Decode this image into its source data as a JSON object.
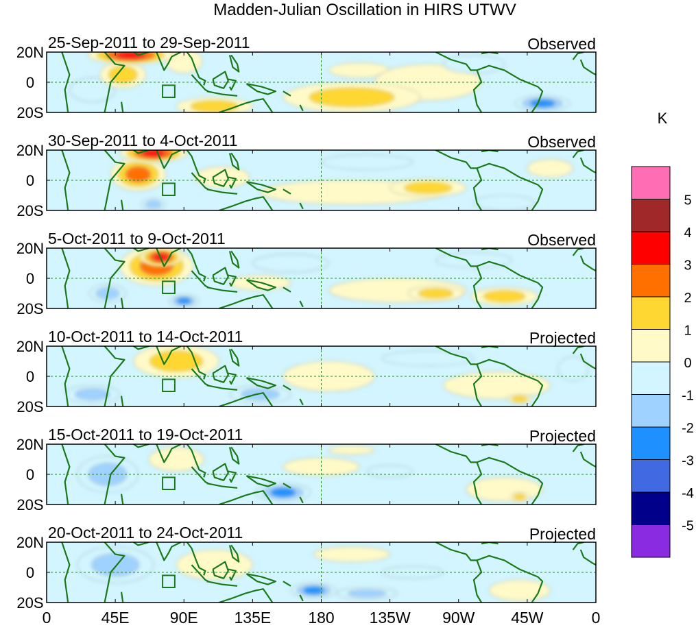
{
  "chart_data": {
    "type": "heatmap",
    "title": "Madden-Julian Oscillation in HIRS UTWV",
    "x_tick_labels": [
      "0",
      "45E",
      "90E",
      "135E",
      "180",
      "135W",
      "90W",
      "45W",
      "0"
    ],
    "x_tick_lons": [
      0,
      45,
      90,
      135,
      180,
      225,
      270,
      315,
      360
    ],
    "y_tick_labels": [
      "20N",
      "0",
      "20S"
    ],
    "y_tick_lats": [
      20,
      0,
      -20
    ],
    "xlim": [
      0,
      360
    ],
    "ylim": [
      -20,
      20
    ],
    "colorbar": {
      "unit": "K",
      "levels": [
        5,
        4,
        3,
        2,
        1,
        0,
        -1,
        -2,
        -3,
        -4,
        -5
      ],
      "colors": [
        "#ff6eb4",
        "#a02828",
        "#ff0000",
        "#ff7000",
        "#ffd732",
        "#fffac8",
        "#d2f5ff",
        "#a0d2ff",
        "#1e90ff",
        "#4169e1",
        "#00008b",
        "#8a2be2"
      ]
    },
    "reference_box": {
      "lon_min": 76,
      "lon_max": 84,
      "lat_min": -10,
      "lat_max": -2
    },
    "panels": [
      {
        "period": "25-Sep-2011 to 29-Sep-2011",
        "status": "Observed",
        "anomalies": [
          {
            "lon": 55,
            "lat": 18,
            "rx": 28,
            "ry": 6,
            "v": 4
          },
          {
            "lon": 50,
            "lat": 5,
            "rx": 15,
            "ry": 9,
            "v": 2
          },
          {
            "lon": 90,
            "lat": 14,
            "rx": 12,
            "ry": 8,
            "v": 1
          },
          {
            "lon": 110,
            "lat": -16,
            "rx": 25,
            "ry": 6,
            "v": 2
          },
          {
            "lon": 200,
            "lat": -10,
            "rx": 45,
            "ry": 10,
            "v": 2
          },
          {
            "lon": 205,
            "lat": 8,
            "rx": 20,
            "ry": 5,
            "v": 1
          },
          {
            "lon": 250,
            "lat": 0,
            "rx": 35,
            "ry": 12,
            "v": 1
          },
          {
            "lon": 325,
            "lat": -14,
            "rx": 18,
            "ry": 5,
            "v": -3
          },
          {
            "lon": 280,
            "lat": 12,
            "rx": 20,
            "ry": 6,
            "v": -1
          },
          {
            "lon": 30,
            "lat": -5,
            "rx": 15,
            "ry": 8,
            "v": -1
          }
        ]
      },
      {
        "period": "30-Sep-2011 to 4-Oct-2011",
        "status": "Observed",
        "anomalies": [
          {
            "lon": 70,
            "lat": 18,
            "rx": 22,
            "ry": 6,
            "v": 4
          },
          {
            "lon": 60,
            "lat": 4,
            "rx": 18,
            "ry": 11,
            "v": 3
          },
          {
            "lon": 115,
            "lat": 2,
            "rx": 18,
            "ry": 7,
            "v": 1
          },
          {
            "lon": 200,
            "lat": -8,
            "rx": 60,
            "ry": 8,
            "v": 1
          },
          {
            "lon": 250,
            "lat": -5,
            "rx": 25,
            "ry": 6,
            "v": 2
          },
          {
            "lon": 330,
            "lat": 8,
            "rx": 15,
            "ry": 6,
            "v": 1
          },
          {
            "lon": 70,
            "lat": -16,
            "rx": 8,
            "ry": 4,
            "v": -2
          },
          {
            "lon": 210,
            "lat": 12,
            "rx": 30,
            "ry": 5,
            "v": -1
          },
          {
            "lon": 300,
            "lat": -15,
            "rx": 20,
            "ry": 5,
            "v": -1
          }
        ]
      },
      {
        "period": "5-Oct-2011 to 9-Oct-2011",
        "status": "Observed",
        "anomalies": [
          {
            "lon": 72,
            "lat": 8,
            "rx": 24,
            "ry": 13,
            "v": 3
          },
          {
            "lon": 75,
            "lat": 14,
            "rx": 14,
            "ry": 6,
            "v": 4
          },
          {
            "lon": 140,
            "lat": -3,
            "rx": 20,
            "ry": 5,
            "v": 1
          },
          {
            "lon": 230,
            "lat": -8,
            "rx": 45,
            "ry": 8,
            "v": 1
          },
          {
            "lon": 255,
            "lat": -10,
            "rx": 18,
            "ry": 5,
            "v": 2
          },
          {
            "lon": 300,
            "lat": -12,
            "rx": 22,
            "ry": 6,
            "v": 2
          },
          {
            "lon": 90,
            "lat": -15,
            "rx": 10,
            "ry": 4,
            "v": -3
          },
          {
            "lon": 40,
            "lat": -10,
            "rx": 12,
            "ry": 6,
            "v": -2
          },
          {
            "lon": 160,
            "lat": 10,
            "rx": 25,
            "ry": 6,
            "v": -1
          },
          {
            "lon": 280,
            "lat": 12,
            "rx": 25,
            "ry": 5,
            "v": -1
          }
        ]
      },
      {
        "period": "10-Oct-2011 to 14-Oct-2011",
        "status": "Projected",
        "anomalies": [
          {
            "lon": 85,
            "lat": 10,
            "rx": 28,
            "ry": 11,
            "v": 2
          },
          {
            "lon": 185,
            "lat": 0,
            "rx": 30,
            "ry": 10,
            "v": 0.5
          },
          {
            "lon": 295,
            "lat": -6,
            "rx": 35,
            "ry": 9,
            "v": 1
          },
          {
            "lon": 310,
            "lat": -15,
            "rx": 8,
            "ry": 3,
            "v": 2
          },
          {
            "lon": 30,
            "lat": -12,
            "rx": 18,
            "ry": 6,
            "v": -2
          },
          {
            "lon": 140,
            "lat": -12,
            "rx": 20,
            "ry": 6,
            "v": -2
          },
          {
            "lon": 250,
            "lat": 12,
            "rx": 30,
            "ry": 5,
            "v": -1
          },
          {
            "lon": 345,
            "lat": 5,
            "rx": 10,
            "ry": 8,
            "v": -1
          }
        ]
      },
      {
        "period": "15-Oct-2011 to 19-Oct-2011",
        "status": "Projected",
        "anomalies": [
          {
            "lon": 85,
            "lat": 10,
            "rx": 18,
            "ry": 8,
            "v": 1
          },
          {
            "lon": 180,
            "lat": 5,
            "rx": 25,
            "ry": 6,
            "v": 0.5
          },
          {
            "lon": 200,
            "lat": 16,
            "rx": 15,
            "ry": 3,
            "v": 1
          },
          {
            "lon": 300,
            "lat": -10,
            "rx": 25,
            "ry": 8,
            "v": 1
          },
          {
            "lon": 310,
            "lat": -15,
            "rx": 6,
            "ry": 3,
            "v": 2
          },
          {
            "lon": 40,
            "lat": 0,
            "rx": 20,
            "ry": 12,
            "v": -2
          },
          {
            "lon": 155,
            "lat": -12,
            "rx": 18,
            "ry": 6,
            "v": -3
          },
          {
            "lon": 225,
            "lat": 2,
            "rx": 15,
            "ry": 4,
            "v": -1
          }
        ]
      },
      {
        "period": "20-Oct-2011 to 24-Oct-2011",
        "status": "Projected",
        "anomalies": [
          {
            "lon": 110,
            "lat": 5,
            "rx": 25,
            "ry": 10,
            "v": 0.5
          },
          {
            "lon": 200,
            "lat": 12,
            "rx": 25,
            "ry": 5,
            "v": 0.5
          },
          {
            "lon": 310,
            "lat": -12,
            "rx": 20,
            "ry": 7,
            "v": 1
          },
          {
            "lon": 45,
            "lat": 5,
            "rx": 25,
            "ry": 12,
            "v": -2
          },
          {
            "lon": 175,
            "lat": -12,
            "rx": 15,
            "ry": 5,
            "v": -3
          },
          {
            "lon": 210,
            "lat": -14,
            "rx": 20,
            "ry": 4,
            "v": -2
          },
          {
            "lon": 240,
            "lat": 0,
            "rx": 20,
            "ry": 4,
            "v": -1
          }
        ]
      }
    ]
  }
}
